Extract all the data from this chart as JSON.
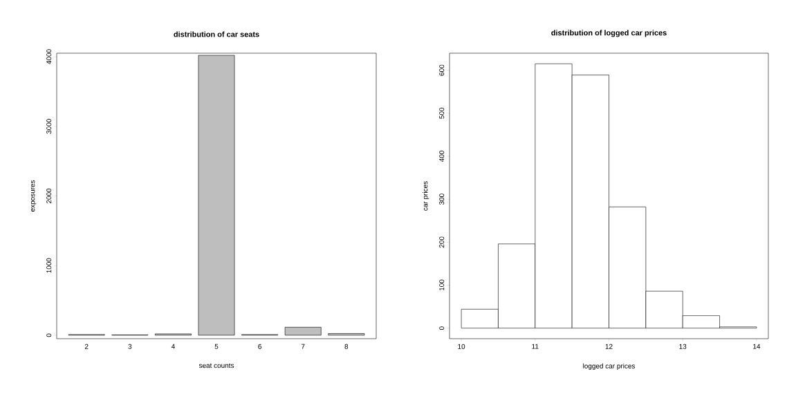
{
  "chart_data": [
    {
      "type": "bar",
      "title": "distribution of car seats",
      "xlabel": "seat counts",
      "ylabel": "exposures",
      "categories": [
        "2",
        "3",
        "4",
        "5",
        "6",
        "7",
        "8"
      ],
      "values": [
        10,
        5,
        20,
        4020,
        10,
        115,
        25
      ],
      "color": "#bebebe",
      "ylim": [
        -50,
        4050
      ],
      "yticks": [
        0,
        1000,
        2000,
        3000,
        4000
      ]
    },
    {
      "type": "histogram",
      "title": "distribution of logged car prices",
      "xlabel": "logged car prices",
      "ylabel": "car prices",
      "bins": [
        10,
        10.5,
        11,
        11.5,
        12,
        12.5,
        13,
        13.5,
        14
      ],
      "values": [
        44,
        196,
        615,
        589,
        282,
        86,
        29,
        3
      ],
      "color": "#ffffff",
      "xlim": [
        9.84,
        14.16
      ],
      "xticks": [
        10,
        11,
        12,
        13,
        14
      ],
      "ylim": [
        -24.6,
        639.6
      ],
      "yticks": [
        0,
        100,
        200,
        300,
        400,
        500,
        600
      ]
    }
  ]
}
